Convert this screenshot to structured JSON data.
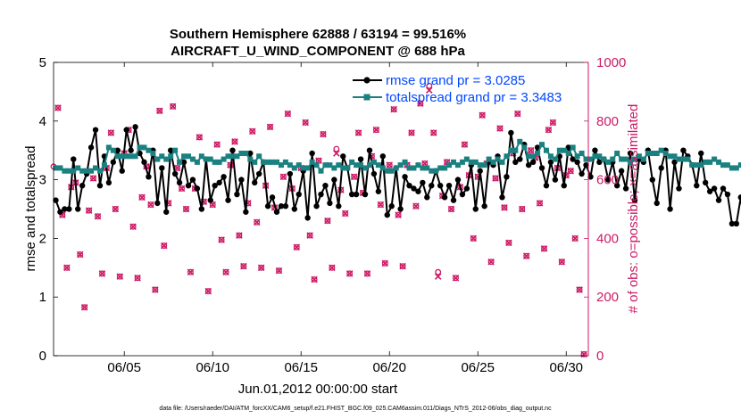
{
  "colors": {
    "rmse": "#000000",
    "spread": "#1a8080",
    "obs": "#cc1a66",
    "legend_text": "#0047ff",
    "axis": "#000000"
  },
  "chart_data": {
    "type": "line",
    "title": "Southern Hemisphere 62888 / 63194 = 99.516%",
    "subtitle": "AIRCRAFT_U_WIND_COMPONENT @ 688 hPa",
    "xlabel": "Jun.01,2012 00:00:00 start",
    "ylabel": "rmse and totalspread",
    "y2label": "# of obs: o=possible; ×=assimilated",
    "footnote": "data file: /Users/raeder/DAI/ATM_forcXX/CAM6_setup/f.e21.FHIST_BGC.f09_025.CAM6assim.011/Diags_NTrS_2012-06/obs_diag_output.nc",
    "xlim": [
      1,
      31.25
    ],
    "ylim": [
      0,
      5
    ],
    "y2lim": [
      0,
      1000
    ],
    "x_ticks": [
      5,
      10,
      15,
      20,
      25,
      30
    ],
    "x_tick_labels": [
      "06/05",
      "06/10",
      "06/15",
      "06/20",
      "06/25",
      "06/30"
    ],
    "y_ticks": [
      0,
      1,
      2,
      3,
      4,
      5
    ],
    "y_tick_labels": [
      "0",
      "1",
      "2",
      "3",
      "4",
      "5"
    ],
    "y2_ticks": [
      0,
      200,
      400,
      600,
      800,
      1000
    ],
    "y2_tick_labels": [
      "0",
      "200",
      "400",
      "600",
      "800",
      "1000"
    ],
    "x_start": 1.125,
    "x_step": 0.25,
    "series": [
      {
        "name": "rmse grand pr = 3.0285",
        "values": [
          2.65,
          2.45,
          2.5,
          2.5,
          3.35,
          2.5,
          2.9,
          3.1,
          3.55,
          3.85,
          2.9,
          3.4,
          2.95,
          3.3,
          3.5,
          3.15,
          3.85,
          3.5,
          3.9,
          3.45,
          3.3,
          3.05,
          3.5,
          2.6,
          3.2,
          2.45,
          3.5,
          3.1,
          2.95,
          3.3,
          2.9,
          3.0,
          2.85,
          2.5,
          3.35,
          2.65,
          2.9,
          2.95,
          3.05,
          2.65,
          3.5,
          2.75,
          3.0,
          2.45,
          3.45,
          2.95,
          3.1,
          3.3,
          2.55,
          2.7,
          2.45,
          2.55,
          2.55,
          3.1,
          2.5,
          2.75,
          3.15,
          2.35,
          3.45,
          2.55,
          2.75,
          2.9,
          2.6,
          3.0,
          2.55,
          3.4,
          3.2,
          2.75,
          2.75,
          3.35,
          2.75,
          3.5,
          3.1,
          2.8,
          3.4,
          2.4,
          2.55,
          3.2,
          2.5,
          3.05,
          2.9,
          2.85,
          2.8,
          2.95,
          2.7,
          2.9,
          3.15,
          2.9,
          2.7,
          2.9,
          2.65,
          3.0,
          2.75,
          2.85,
          3.25,
          2.5,
          3.15,
          2.55,
          3.3,
          3.25,
          3.4,
          2.7,
          3.05,
          3.8,
          3.3,
          3.35,
          3.6,
          3.25,
          3.3,
          3.55,
          3.2,
          2.9,
          3.3,
          3.0,
          3.4,
          2.9,
          3.55,
          3.35,
          3.3,
          3.1,
          3.25,
          3.05,
          3.5,
          3.3,
          3.35,
          3.0,
          3.3,
          2.9,
          3.15,
          2.85,
          3.45,
          2.65,
          3.35,
          3.3,
          3.5,
          3.0,
          2.6,
          3.2,
          3.5,
          2.5,
          3.3,
          2.85,
          3.5,
          3.4,
          3.25,
          2.9,
          3.45,
          2.95,
          2.8,
          2.85,
          2.65,
          2.85,
          2.75,
          2.25,
          2.25,
          2.7,
          2.15
        ]
      },
      {
        "name": "totalspread grand pr = 3.3483",
        "values": [
          3.2,
          3.2,
          3.15,
          3.15,
          3.15,
          3.2,
          3.15,
          3.15,
          3.15,
          3.2,
          3.15,
          3.25,
          3.55,
          3.5,
          3.4,
          3.4,
          3.4,
          3.4,
          3.4,
          3.55,
          3.55,
          3.5,
          3.45,
          3.35,
          3.4,
          3.35,
          3.4,
          3.5,
          3.3,
          3.4,
          3.4,
          3.35,
          3.3,
          3.4,
          3.35,
          3.35,
          3.3,
          3.3,
          3.35,
          3.4,
          3.4,
          3.4,
          3.45,
          3.45,
          3.35,
          3.3,
          3.4,
          3.3,
          3.3,
          3.3,
          3.3,
          3.25,
          3.3,
          3.25,
          3.2,
          3.25,
          3.2,
          3.2,
          3.3,
          3.25,
          3.15,
          3.25,
          3.25,
          3.2,
          3.25,
          3.2,
          3.2,
          3.3,
          3.25,
          3.25,
          3.2,
          3.25,
          3.3,
          3.25,
          3.2,
          3.15,
          3.15,
          3.2,
          3.25,
          3.3,
          3.2,
          3.2,
          3.25,
          3.2,
          3.2,
          3.15,
          3.15,
          3.2,
          3.2,
          3.25,
          3.3,
          3.25,
          3.3,
          3.35,
          3.3,
          3.3,
          3.25,
          3.25,
          3.35,
          3.3,
          3.35,
          3.3,
          3.4,
          3.5,
          3.5,
          3.65,
          3.55,
          3.4,
          3.4,
          3.45,
          3.6,
          3.5,
          3.4,
          3.35,
          3.5,
          3.5,
          3.45,
          3.55,
          3.4,
          3.45,
          3.35,
          3.35,
          3.4,
          3.4,
          3.35,
          3.3,
          3.35,
          3.45,
          3.35,
          3.35,
          3.3,
          3.35,
          3.4,
          3.35,
          3.45,
          3.45,
          3.45,
          3.5,
          3.45,
          3.4,
          3.4,
          3.35,
          3.35,
          3.35,
          3.25,
          3.25,
          3.25,
          3.3,
          3.3,
          3.35,
          3.3,
          3.25,
          3.25,
          3.2,
          3.2,
          3.25,
          3.3
        ]
      }
    ],
    "obs_points": [
      {
        "x": 1.0,
        "y": 645,
        "kind": "o"
      },
      {
        "x": 1.25,
        "y": 845,
        "kind": "both"
      },
      {
        "x": 1.5,
        "y": 480,
        "kind": "both"
      },
      {
        "x": 1.75,
        "y": 300,
        "kind": "both"
      },
      {
        "x": 2.0,
        "y": 575,
        "kind": "both"
      },
      {
        "x": 2.25,
        "y": 590,
        "kind": "both"
      },
      {
        "x": 2.5,
        "y": 345,
        "kind": "both"
      },
      {
        "x": 2.75,
        "y": 165,
        "kind": "both"
      },
      {
        "x": 3.0,
        "y": 495,
        "kind": "both"
      },
      {
        "x": 3.25,
        "y": 605,
        "kind": "both"
      },
      {
        "x": 3.5,
        "y": 475,
        "kind": "both"
      },
      {
        "x": 3.75,
        "y": 280,
        "kind": "both"
      },
      {
        "x": 4.0,
        "y": 640,
        "kind": "both"
      },
      {
        "x": 4.25,
        "y": 760,
        "kind": "both"
      },
      {
        "x": 4.5,
        "y": 500,
        "kind": "both"
      },
      {
        "x": 4.75,
        "y": 270,
        "kind": "both"
      },
      {
        "x": 5.0,
        "y": 690,
        "kind": "both"
      },
      {
        "x": 5.25,
        "y": 770,
        "kind": "both"
      },
      {
        "x": 5.5,
        "y": 440,
        "kind": "both"
      },
      {
        "x": 5.75,
        "y": 265,
        "kind": "both"
      },
      {
        "x": 6.0,
        "y": 540,
        "kind": "both"
      },
      {
        "x": 6.25,
        "y": 645,
        "kind": "both"
      },
      {
        "x": 6.5,
        "y": 515,
        "kind": "both"
      },
      {
        "x": 6.75,
        "y": 225,
        "kind": "both"
      },
      {
        "x": 7.0,
        "y": 835,
        "kind": "both"
      },
      {
        "x": 7.25,
        "y": 375,
        "kind": "both"
      },
      {
        "x": 7.5,
        "y": 520,
        "kind": "both"
      },
      {
        "x": 7.75,
        "y": 850,
        "kind": "both"
      },
      {
        "x": 8.0,
        "y": 640,
        "kind": "both"
      },
      {
        "x": 8.25,
        "y": 570,
        "kind": "both"
      },
      {
        "x": 8.5,
        "y": 500,
        "kind": "both"
      },
      {
        "x": 8.75,
        "y": 285,
        "kind": "both"
      },
      {
        "x": 9.0,
        "y": 570,
        "kind": "both"
      },
      {
        "x": 9.25,
        "y": 745,
        "kind": "both"
      },
      {
        "x": 9.5,
        "y": 525,
        "kind": "both"
      },
      {
        "x": 9.75,
        "y": 220,
        "kind": "both"
      },
      {
        "x": 10.0,
        "y": 515,
        "kind": "both"
      },
      {
        "x": 10.25,
        "y": 720,
        "kind": "both"
      },
      {
        "x": 10.5,
        "y": 395,
        "kind": "both"
      },
      {
        "x": 10.75,
        "y": 285,
        "kind": "both"
      },
      {
        "x": 11.0,
        "y": 650,
        "kind": "both"
      },
      {
        "x": 11.25,
        "y": 730,
        "kind": "both"
      },
      {
        "x": 11.5,
        "y": 410,
        "kind": "both"
      },
      {
        "x": 11.75,
        "y": 305,
        "kind": "both"
      },
      {
        "x": 12.0,
        "y": 520,
        "kind": "both"
      },
      {
        "x": 12.25,
        "y": 765,
        "kind": "both"
      },
      {
        "x": 12.5,
        "y": 455,
        "kind": "both"
      },
      {
        "x": 12.75,
        "y": 300,
        "kind": "both"
      },
      {
        "x": 13.0,
        "y": 580,
        "kind": "both"
      },
      {
        "x": 13.25,
        "y": 780,
        "kind": "both"
      },
      {
        "x": 13.5,
        "y": 505,
        "kind": "both"
      },
      {
        "x": 13.75,
        "y": 290,
        "kind": "both"
      },
      {
        "x": 14.0,
        "y": 610,
        "kind": "both"
      },
      {
        "x": 14.25,
        "y": 825,
        "kind": "both"
      },
      {
        "x": 14.5,
        "y": 570,
        "kind": "both"
      },
      {
        "x": 14.75,
        "y": 370,
        "kind": "both"
      },
      {
        "x": 15.0,
        "y": 640,
        "kind": "both"
      },
      {
        "x": 15.25,
        "y": 795,
        "kind": "both"
      },
      {
        "x": 15.5,
        "y": 410,
        "kind": "both"
      },
      {
        "x": 15.75,
        "y": 260,
        "kind": "both"
      },
      {
        "x": 16.0,
        "y": 665,
        "kind": "both"
      },
      {
        "x": 16.25,
        "y": 755,
        "kind": "both"
      },
      {
        "x": 16.5,
        "y": 460,
        "kind": "both"
      },
      {
        "x": 16.75,
        "y": 300,
        "kind": "both"
      },
      {
        "x": 17.0,
        "y": 705,
        "kind": "o"
      },
      {
        "x": 17.0,
        "y": 690,
        "kind": "x"
      },
      {
        "x": 17.25,
        "y": 565,
        "kind": "both"
      },
      {
        "x": 17.5,
        "y": 485,
        "kind": "both"
      },
      {
        "x": 17.75,
        "y": 280,
        "kind": "both"
      },
      {
        "x": 18.0,
        "y": 610,
        "kind": "both"
      },
      {
        "x": 18.25,
        "y": 760,
        "kind": "both"
      },
      {
        "x": 18.5,
        "y": 555,
        "kind": "both"
      },
      {
        "x": 18.75,
        "y": 280,
        "kind": "both"
      },
      {
        "x": 19.0,
        "y": 680,
        "kind": "both"
      },
      {
        "x": 19.25,
        "y": 770,
        "kind": "both"
      },
      {
        "x": 19.5,
        "y": 515,
        "kind": "both"
      },
      {
        "x": 19.75,
        "y": 315,
        "kind": "both"
      },
      {
        "x": 20.0,
        "y": 650,
        "kind": "both"
      },
      {
        "x": 20.25,
        "y": 840,
        "kind": "both"
      },
      {
        "x": 20.5,
        "y": 480,
        "kind": "both"
      },
      {
        "x": 20.75,
        "y": 305,
        "kind": "both"
      },
      {
        "x": 21.0,
        "y": 650,
        "kind": "both"
      },
      {
        "x": 21.25,
        "y": 760,
        "kind": "both"
      },
      {
        "x": 21.5,
        "y": 510,
        "kind": "both"
      },
      {
        "x": 21.75,
        "y": 860,
        "kind": "both"
      },
      {
        "x": 22.25,
        "y": 920,
        "kind": "o"
      },
      {
        "x": 22.25,
        "y": 905,
        "kind": "x"
      },
      {
        "x": 22.0,
        "y": 655,
        "kind": "both"
      },
      {
        "x": 22.5,
        "y": 760,
        "kind": "both"
      },
      {
        "x": 22.75,
        "y": 285,
        "kind": "o"
      },
      {
        "x": 22.75,
        "y": 270,
        "kind": "x"
      },
      {
        "x": 23.0,
        "y": 545,
        "kind": "both"
      },
      {
        "x": 23.25,
        "y": 660,
        "kind": "both"
      },
      {
        "x": 23.5,
        "y": 500,
        "kind": "both"
      },
      {
        "x": 23.75,
        "y": 265,
        "kind": "both"
      },
      {
        "x": 24.0,
        "y": 575,
        "kind": "both"
      },
      {
        "x": 24.25,
        "y": 720,
        "kind": "both"
      },
      {
        "x": 24.5,
        "y": 615,
        "kind": "both"
      },
      {
        "x": 24.75,
        "y": 400,
        "kind": "both"
      },
      {
        "x": 25.0,
        "y": 610,
        "kind": "both"
      },
      {
        "x": 25.25,
        "y": 820,
        "kind": "both"
      },
      {
        "x": 25.5,
        "y": 655,
        "kind": "both"
      },
      {
        "x": 25.75,
        "y": 320,
        "kind": "both"
      },
      {
        "x": 26.0,
        "y": 605,
        "kind": "both"
      },
      {
        "x": 26.25,
        "y": 775,
        "kind": "both"
      },
      {
        "x": 26.5,
        "y": 505,
        "kind": "both"
      },
      {
        "x": 26.75,
        "y": 385,
        "kind": "both"
      },
      {
        "x": 27.0,
        "y": 690,
        "kind": "both"
      },
      {
        "x": 27.25,
        "y": 825,
        "kind": "both"
      },
      {
        "x": 27.5,
        "y": 500,
        "kind": "both"
      },
      {
        "x": 27.75,
        "y": 340,
        "kind": "both"
      },
      {
        "x": 28.0,
        "y": 700,
        "kind": "both"
      },
      {
        "x": 28.25,
        "y": 675,
        "kind": "both"
      },
      {
        "x": 28.5,
        "y": 520,
        "kind": "both"
      },
      {
        "x": 28.75,
        "y": 365,
        "kind": "both"
      },
      {
        "x": 29.0,
        "y": 770,
        "kind": "both"
      },
      {
        "x": 29.25,
        "y": 795,
        "kind": "both"
      },
      {
        "x": 29.5,
        "y": 640,
        "kind": "both"
      },
      {
        "x": 29.75,
        "y": 320,
        "kind": "both"
      },
      {
        "x": 30.0,
        "y": 615,
        "kind": "both"
      },
      {
        "x": 30.25,
        "y": 630,
        "kind": "both"
      },
      {
        "x": 30.5,
        "y": 400,
        "kind": "both"
      },
      {
        "x": 30.75,
        "y": 225,
        "kind": "both"
      },
      {
        "x": 31.0,
        "y": 5,
        "kind": "both"
      }
    ]
  }
}
